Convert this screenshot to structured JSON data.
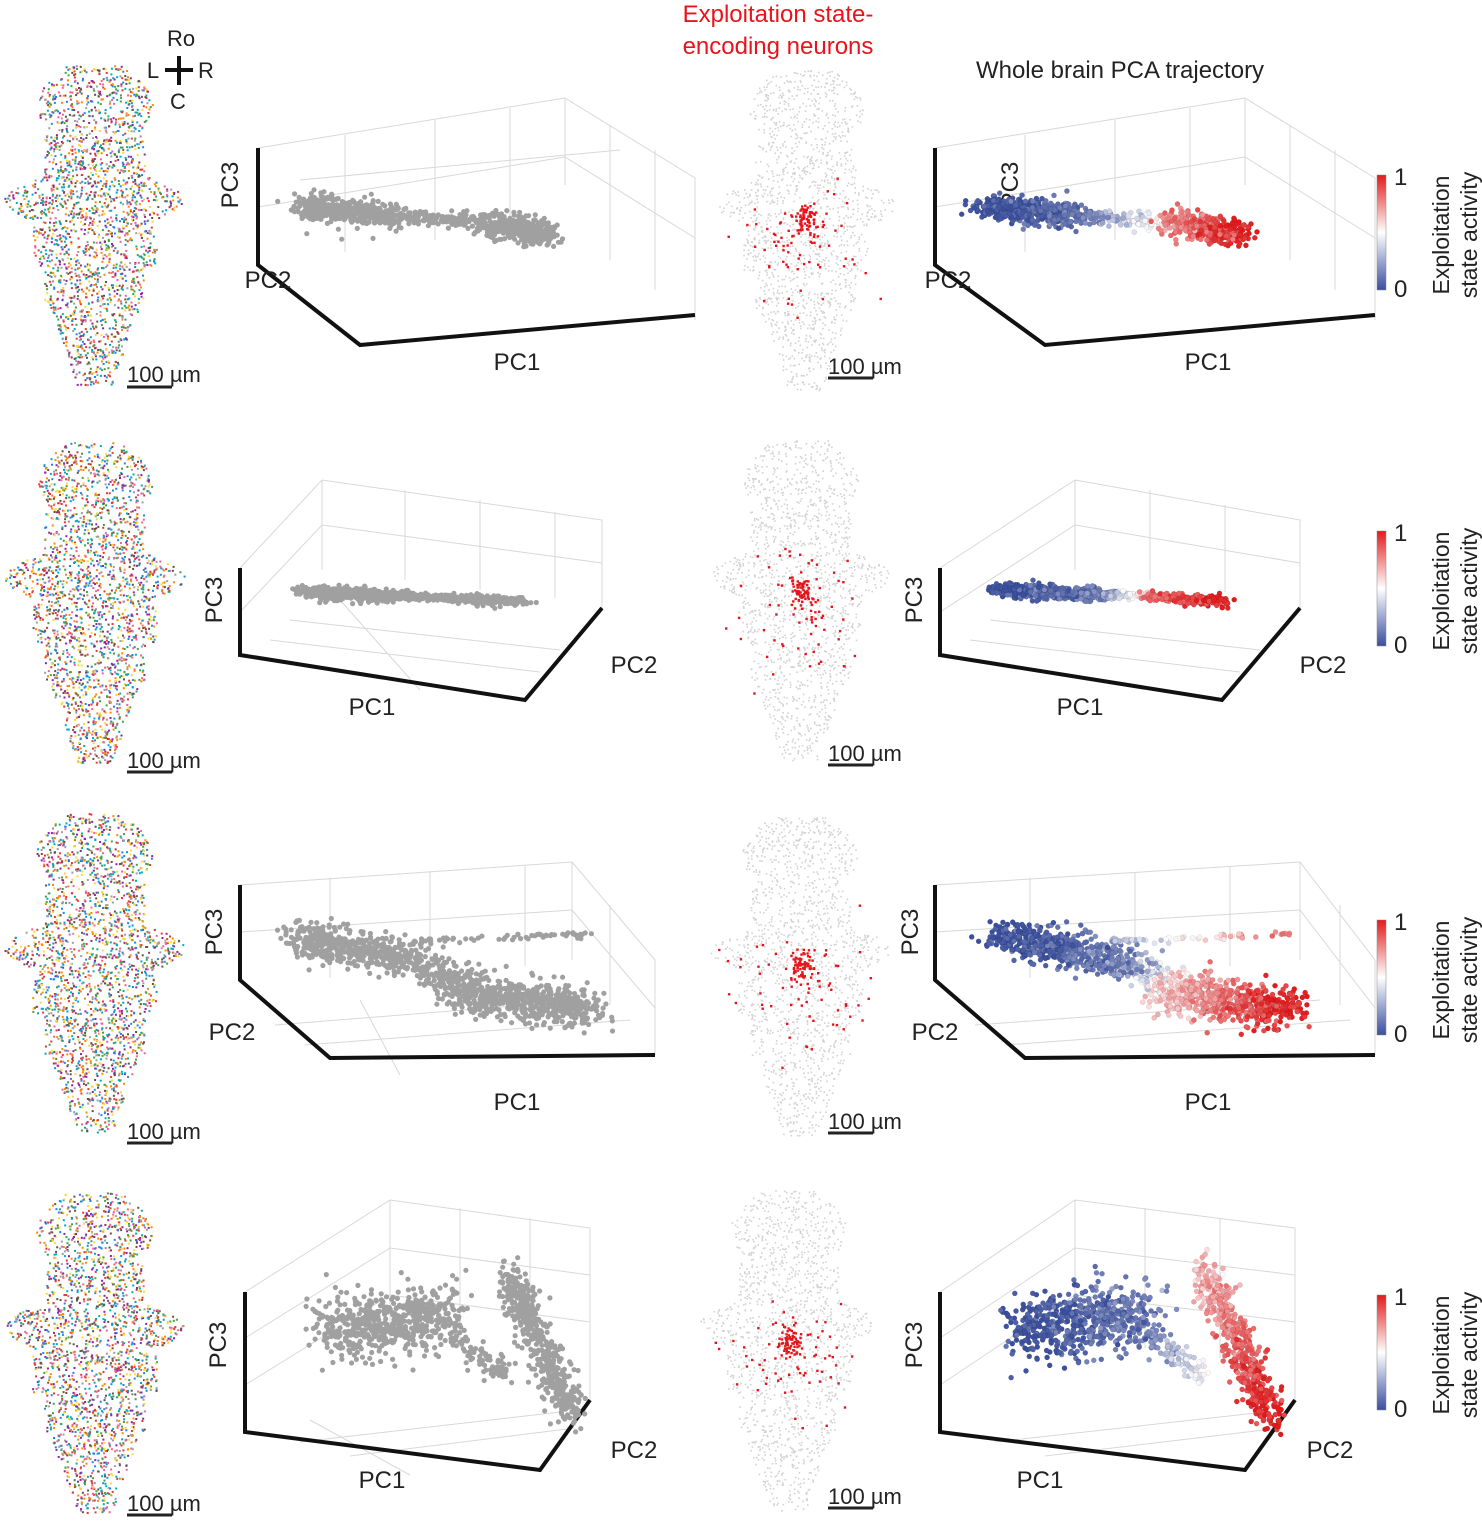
{
  "header": {
    "orientation": {
      "rostral": "Ro",
      "left": "L",
      "right": "R",
      "caudal": "C"
    },
    "middle_title_line1": "Exploitation state-",
    "middle_title_line2": "encoding neurons",
    "right_title": "Whole brain PCA trajectory"
  },
  "scale_bar_label": "100 µm",
  "colorbar": {
    "label_line1": "Exploitation",
    "label_line2": "state activity",
    "max_label": "1",
    "min_label": "0",
    "low_color": "#3a4f9e",
    "mid_color": "#ffffff",
    "high_color": "#e31a1c"
  },
  "colors": {
    "gray_trajectory": "#a0a0a0",
    "brain_gray": "#d2d2d2",
    "encoding_neurons": "#e8141c",
    "header_red": "#e8141c"
  },
  "chart_data": [
    {
      "type": "scatter",
      "panel": "row 1 PCA trajectory (gray)",
      "xlabel": "PC1",
      "ylabel": "PC2",
      "zlabel": "PC3",
      "color": "gray",
      "segments": [
        {
          "from": [
            0.05,
            0.72,
            0.5
          ],
          "to": [
            0.38,
            0.65,
            0.5
          ],
          "n": 420,
          "spread": 0.05
        },
        {
          "from": [
            0.38,
            0.65,
            0.5
          ],
          "to": [
            0.72,
            0.6,
            0.5
          ],
          "n": 160,
          "spread": 0.03
        },
        {
          "from": [
            0.72,
            0.6,
            0.5
          ],
          "to": [
            0.95,
            0.5,
            0.45
          ],
          "n": 380,
          "spread": 0.05
        }
      ]
    },
    {
      "type": "scatter",
      "panel": "row 1 PCA trajectory (colored)",
      "xlabel": "PC1",
      "ylabel": "PC2",
      "zlabel": "PC3",
      "color": "exploitation",
      "segments": [
        {
          "from": [
            0.05,
            0.72,
            0.5
          ],
          "to": [
            0.38,
            0.65,
            0.5
          ],
          "n": 420,
          "spread": 0.05,
          "c": [
            0.0,
            0.1
          ]
        },
        {
          "from": [
            0.38,
            0.65,
            0.5
          ],
          "to": [
            0.72,
            0.6,
            0.5
          ],
          "n": 160,
          "spread": 0.03,
          "c": [
            0.1,
            0.6
          ]
        },
        {
          "from": [
            0.72,
            0.6,
            0.5
          ],
          "to": [
            0.95,
            0.5,
            0.45
          ],
          "n": 380,
          "spread": 0.05,
          "c": [
            0.75,
            1.0
          ]
        }
      ]
    },
    {
      "type": "scatter",
      "panel": "row 2 PCA trajectory (gray)",
      "xlabel": "PC1",
      "ylabel": "PC2",
      "zlabel": "PC3",
      "color": "gray",
      "segments": [
        {
          "from": [
            0.05,
            0.62,
            0.5
          ],
          "to": [
            0.45,
            0.55,
            0.5
          ],
          "n": 500,
          "spread": 0.05
        },
        {
          "from": [
            0.45,
            0.55,
            0.5
          ],
          "to": [
            0.62,
            0.52,
            0.5
          ],
          "n": 80,
          "spread": 0.03
        },
        {
          "from": [
            0.62,
            0.52,
            0.5
          ],
          "to": [
            0.92,
            0.45,
            0.5
          ],
          "n": 200,
          "spread": 0.04
        }
      ]
    },
    {
      "type": "scatter",
      "panel": "row 2 PCA trajectory (colored)",
      "xlabel": "PC1",
      "ylabel": "PC2",
      "zlabel": "PC3",
      "color": "exploitation",
      "segments": [
        {
          "from": [
            0.05,
            0.62,
            0.5
          ],
          "to": [
            0.45,
            0.55,
            0.5
          ],
          "n": 500,
          "spread": 0.05,
          "c": [
            0.0,
            0.15
          ]
        },
        {
          "from": [
            0.45,
            0.55,
            0.5
          ],
          "to": [
            0.62,
            0.52,
            0.5
          ],
          "n": 80,
          "spread": 0.03,
          "c": [
            0.2,
            0.6
          ]
        },
        {
          "from": [
            0.62,
            0.52,
            0.5
          ],
          "to": [
            0.92,
            0.45,
            0.5
          ],
          "n": 200,
          "spread": 0.04,
          "c": [
            0.8,
            1.0
          ]
        }
      ]
    },
    {
      "type": "scatter",
      "panel": "row 3 PCA trajectory (gray)",
      "xlabel": "PC1",
      "ylabel": "PC2",
      "zlabel": "PC3",
      "color": "gray",
      "segments": [
        {
          "from": [
            0.05,
            0.78,
            0.5
          ],
          "to": [
            0.42,
            0.62,
            0.5
          ],
          "n": 500,
          "spread": 0.06
        },
        {
          "from": [
            0.42,
            0.62,
            0.5
          ],
          "to": [
            0.6,
            0.45,
            0.5
          ],
          "n": 150,
          "spread": 0.06
        },
        {
          "from": [
            0.55,
            0.4,
            0.5
          ],
          "to": [
            0.97,
            0.28,
            0.5
          ],
          "n": 600,
          "spread": 0.07
        },
        {
          "from": [
            0.4,
            0.75,
            0.5
          ],
          "to": [
            0.97,
            0.8,
            0.5
          ],
          "n": 60,
          "spread": 0.01
        }
      ]
    },
    {
      "type": "scatter",
      "panel": "row 3 PCA trajectory (colored)",
      "xlabel": "PC1",
      "ylabel": "PC2",
      "zlabel": "PC3",
      "color": "exploitation",
      "segments": [
        {
          "from": [
            0.05,
            0.78,
            0.5
          ],
          "to": [
            0.42,
            0.62,
            0.5
          ],
          "n": 500,
          "spread": 0.06,
          "c": [
            0.0,
            0.15
          ]
        },
        {
          "from": [
            0.42,
            0.62,
            0.5
          ],
          "to": [
            0.6,
            0.45,
            0.5
          ],
          "n": 150,
          "spread": 0.06,
          "c": [
            0.1,
            0.6
          ]
        },
        {
          "from": [
            0.55,
            0.4,
            0.5
          ],
          "to": [
            0.97,
            0.28,
            0.5
          ],
          "n": 600,
          "spread": 0.07,
          "c": [
            0.6,
            1.0
          ]
        },
        {
          "from": [
            0.4,
            0.75,
            0.5
          ],
          "to": [
            0.97,
            0.8,
            0.5
          ],
          "n": 60,
          "spread": 0.01,
          "c": [
            0.3,
            0.8
          ]
        }
      ]
    },
    {
      "type": "scatter",
      "panel": "row 4 PCA trajectory (gray)",
      "xlabel": "PC1",
      "ylabel": "PC2",
      "zlabel": "PC3",
      "color": "gray",
      "segments": [
        {
          "from": [
            0.05,
            0.62,
            0.5
          ],
          "to": [
            0.5,
            0.7,
            0.5
          ],
          "n": 600,
          "spread": 0.08
        },
        {
          "from": [
            0.5,
            0.6,
            0.5
          ],
          "to": [
            0.72,
            0.4,
            0.5
          ],
          "n": 100,
          "spread": 0.03
        },
        {
          "from": [
            0.72,
            0.9,
            0.5
          ],
          "to": [
            0.95,
            0.2,
            0.5
          ],
          "n": 500,
          "spread": 0.05
        }
      ]
    },
    {
      "type": "scatter",
      "panel": "row 4 PCA trajectory (colored)",
      "xlabel": "PC1",
      "ylabel": "PC2",
      "zlabel": "PC3",
      "color": "exploitation",
      "segments": [
        {
          "from": [
            0.05,
            0.62,
            0.5
          ],
          "to": [
            0.5,
            0.7,
            0.5
          ],
          "n": 600,
          "spread": 0.08,
          "c": [
            0.0,
            0.15
          ]
        },
        {
          "from": [
            0.5,
            0.6,
            0.5
          ],
          "to": [
            0.72,
            0.4,
            0.5
          ],
          "n": 100,
          "spread": 0.03,
          "c": [
            0.1,
            0.5
          ]
        },
        {
          "from": [
            0.72,
            0.9,
            0.5
          ],
          "to": [
            0.95,
            0.2,
            0.5
          ],
          "n": 500,
          "spread": 0.05,
          "c": [
            0.65,
            1.0
          ]
        }
      ]
    }
  ]
}
